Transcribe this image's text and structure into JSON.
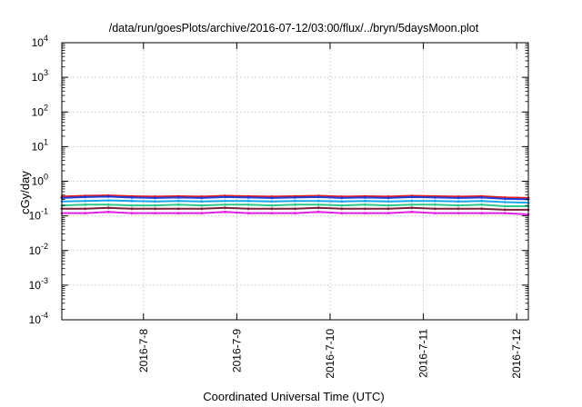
{
  "chart_data": {
    "type": "line",
    "title": "/data/run/goesPlots/archive/2016-07-12/03:00/flux/../bryn/5daysMoon.plot",
    "xlabel": "Coordinated Universal Time (UTC)",
    "ylabel": "cGy/day",
    "yscale": "log",
    "ylim": [
      0.0001,
      10000
    ],
    "xlim": [
      "2016-07-07T03:00",
      "2016-07-12T03:00"
    ],
    "grid": true,
    "legend": "none",
    "y_ticks": [
      {
        "value": 0.0001,
        "mantissa": "10",
        "exp": "-4"
      },
      {
        "value": 0.001,
        "mantissa": "10",
        "exp": "-3"
      },
      {
        "value": 0.01,
        "mantissa": "10",
        "exp": "-2"
      },
      {
        "value": 0.1,
        "mantissa": "10",
        "exp": "-1"
      },
      {
        "value": 1,
        "mantissa": "10",
        "exp": "0"
      },
      {
        "value": 10,
        "mantissa": "10",
        "exp": "1"
      },
      {
        "value": 100,
        "mantissa": "10",
        "exp": "2"
      },
      {
        "value": 1000,
        "mantissa": "10",
        "exp": "3"
      },
      {
        "value": 10000,
        "mantissa": "10",
        "exp": "4"
      }
    ],
    "x_ticks": [
      {
        "value": "2016-07-08T00:00",
        "label": "2016-7-8"
      },
      {
        "value": "2016-07-09T00:00",
        "label": "2016-7-9"
      },
      {
        "value": "2016-07-10T00:00",
        "label": "2016-7-10"
      },
      {
        "value": "2016-07-11T00:00",
        "label": "2016-7-11"
      },
      {
        "value": "2016-07-12T00:00",
        "label": "2016-7-12"
      }
    ],
    "x": [
      "2016-07-07T03:00",
      "2016-07-07T09:00",
      "2016-07-07T15:00",
      "2016-07-07T21:00",
      "2016-07-08T03:00",
      "2016-07-08T09:00",
      "2016-07-08T15:00",
      "2016-07-08T21:00",
      "2016-07-09T03:00",
      "2016-07-09T09:00",
      "2016-07-09T15:00",
      "2016-07-09T21:00",
      "2016-07-10T03:00",
      "2016-07-10T09:00",
      "2016-07-10T15:00",
      "2016-07-10T21:00",
      "2016-07-11T03:00",
      "2016-07-11T09:00",
      "2016-07-11T15:00",
      "2016-07-11T21:00",
      "2016-07-12T03:00"
    ],
    "series": [
      {
        "color": "#e31a1c",
        "values": [
          0.36,
          0.38,
          0.39,
          0.37,
          0.36,
          0.37,
          0.36,
          0.38,
          0.37,
          0.36,
          0.37,
          0.38,
          0.36,
          0.37,
          0.36,
          0.38,
          0.37,
          0.36,
          0.37,
          0.34,
          0.33
        ]
      },
      {
        "color": "#1f3fd8",
        "values": [
          0.33,
          0.35,
          0.36,
          0.34,
          0.33,
          0.34,
          0.33,
          0.35,
          0.34,
          0.33,
          0.34,
          0.35,
          0.33,
          0.34,
          0.33,
          0.35,
          0.34,
          0.33,
          0.34,
          0.31,
          0.3
        ]
      },
      {
        "color": "#18a8e8",
        "values": [
          0.26,
          0.27,
          0.28,
          0.27,
          0.26,
          0.27,
          0.26,
          0.27,
          0.27,
          0.26,
          0.27,
          0.27,
          0.26,
          0.27,
          0.26,
          0.27,
          0.27,
          0.26,
          0.27,
          0.25,
          0.24
        ]
      },
      {
        "color": "#2ec98a",
        "values": [
          0.2,
          0.21,
          0.21,
          0.2,
          0.2,
          0.21,
          0.2,
          0.21,
          0.21,
          0.2,
          0.21,
          0.21,
          0.2,
          0.21,
          0.2,
          0.21,
          0.21,
          0.2,
          0.21,
          0.19,
          0.19
        ]
      },
      {
        "color": "#7a1f3a",
        "values": [
          0.16,
          0.16,
          0.17,
          0.16,
          0.16,
          0.16,
          0.16,
          0.17,
          0.16,
          0.16,
          0.16,
          0.17,
          0.16,
          0.16,
          0.16,
          0.17,
          0.16,
          0.16,
          0.16,
          0.15,
          0.15
        ]
      },
      {
        "color": "#e21ee0",
        "values": [
          0.12,
          0.12,
          0.13,
          0.12,
          0.12,
          0.12,
          0.12,
          0.13,
          0.12,
          0.12,
          0.12,
          0.13,
          0.12,
          0.12,
          0.12,
          0.13,
          0.12,
          0.12,
          0.12,
          0.12,
          0.11
        ]
      }
    ]
  }
}
